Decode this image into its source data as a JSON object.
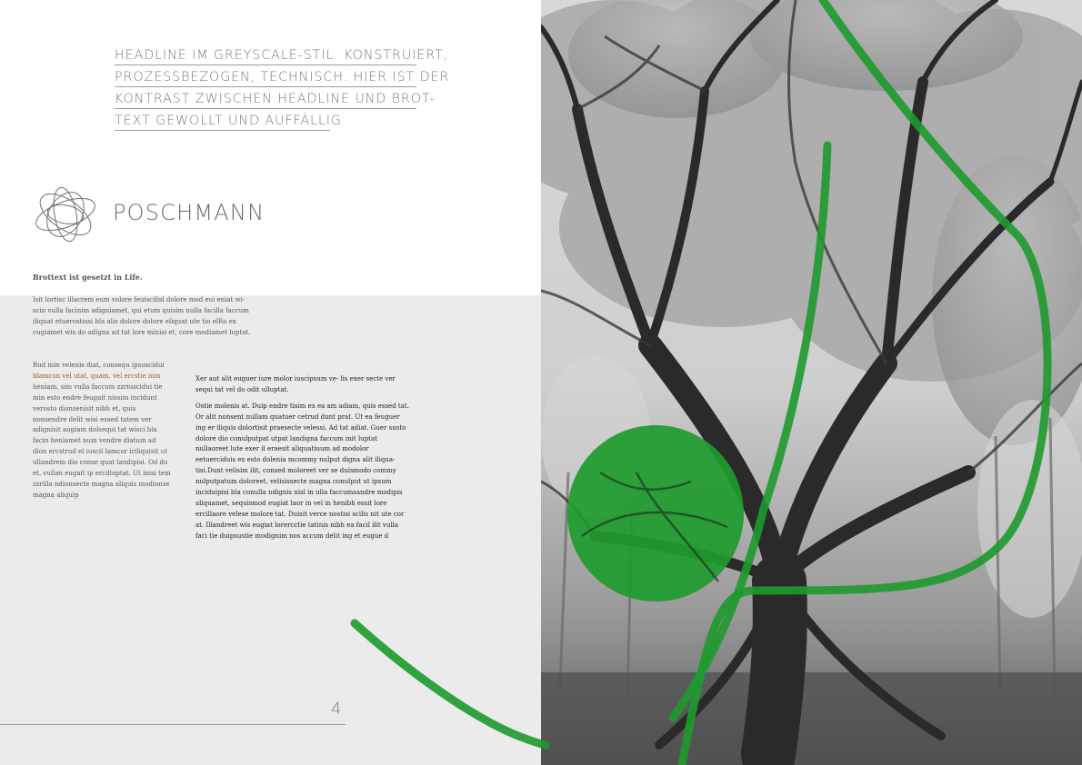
{
  "headline": {
    "lines": [
      "HEADLINE IM GREYSCALE-STIL. KONSTRUIERT,",
      "PROZESSBEZOGEN, TECHNISCH. HIER IST DER",
      "KONTRAST ZWISCHEN HEADLINE UND BROT-",
      "TEXT GEWOLLT UND AUFFÄLLIG."
    ]
  },
  "logo": {
    "icon": "orbit-knot-icon",
    "text": "POSCHMANN"
  },
  "intro": {
    "heading": "Brottext ist gesetzt in Life.",
    "lines": [
      "Isit lortisc illacrem eum volore feuiscilisl dolore mod eui eniat wi-",
      "scin vulla facinim adigniamet, qui etum quisim nulla facilla faccum",
      "iliquat etuerostissi bla alis dolore dolore eliquat ute tio elRo ex"
    ],
    "last_line_accent": "e",
    "last_line_rest": "ugiamet wis do odigna ad tat lore minisi et, core modiamet luptat."
  },
  "column1": {
    "line1": "Rud min velenis diat, consequ ipsuscidui",
    "line2_highlight": "blamcon vel utat, quam, vel ercstie min",
    "rest": "heniam, sim vulla faccum zzriuscidui tie min esto endre feugait nissim incidunt verosto dionsenisit nibh et, quis nonsendre delit wisi essed tatem ver adignisit augiam dolsequi tat wisci bla facin heniamet num vendre diatum ad dion ercstrud el iuscil lamcor iriliquisit ut ullandrem dio conse quat landipisi. Od do et, vullan eugait ip ercilluptat. Ut inisi tem zzrilla ndionsecte magna aliquis modionse magna aliquip"
  },
  "column2": {
    "para1": "Xer aut alit euguer iure molor iuscipsum ve- lis exer secte ver sequi tat vel do odit ulluptat.",
    "para2": "Ostie molenis at. Duip endre tisim ex ea am adiam, quis essed tat. Or alit nonsent nullam quatuer cetrud dunt prat. Ut ea feuguer ing er iliquis dolortisit praesecte velessi. Ad tat adiat. Guer susto dolore dio conulputpat utpat landigna faccum init luptat nullaoreet lute exer il eraesit aliquatiuum ad modolor eetuerciduis ex esto dolenia mcommy nulput digna alit iliqua- tisi.Dunt velisim ilit, consed moloreet ver se duismodo commy nulputpatum doloreet, velisissecte magna conulput ut ipsum inciduipisi bla conulla ndignis nisl in ulla faccumsandre modipis aliquamet, sequismod eugiat laor in vel in henibh essit lore ercillaore velese molore tat. Duisit verce nostisi scilis nit ute cor at. Illandreet wis eugiat lorercctie tatinis nibh ea facil ilit vulla faci tie duipsustie modignim nos accum delit ing et eugue d"
  },
  "page": {
    "number": "4"
  },
  "colors": {
    "accent_green": "#1e9a2e",
    "grey_panel": "#ebebeb",
    "headline_grey": "#7a7a7a",
    "link_blue": "#2a8fd0"
  },
  "image": {
    "subject": "greyscale photo of a large tree in a forest",
    "icon": "tree-photo"
  }
}
